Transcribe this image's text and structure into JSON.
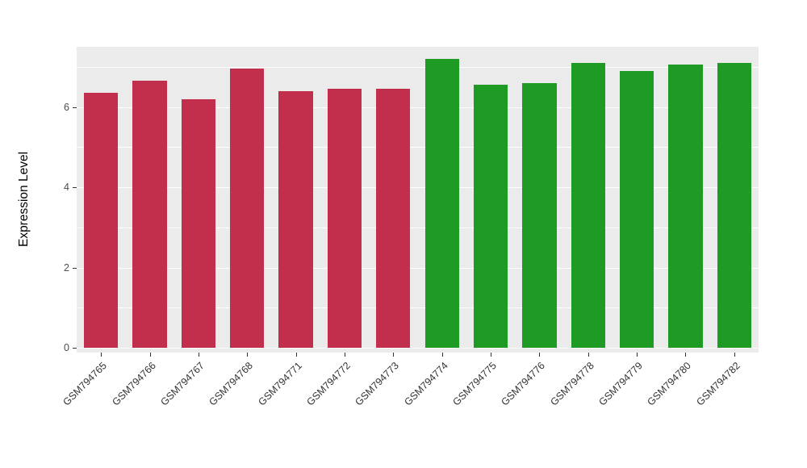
{
  "figure": {
    "background_hex": "#FFFFFF",
    "panel_background_hex": "#EBEBEB",
    "gridline_hex": "#FFFFFF",
    "axis_text_hex": "#4D4D4D"
  },
  "chart_data": {
    "type": "bar",
    "title": "",
    "xlabel": "",
    "ylabel": "Expression Level",
    "ylim": [
      0,
      7.5
    ],
    "yticks": [
      0,
      2,
      4,
      6
    ],
    "minor_gridlines": [
      1,
      3,
      5,
      7
    ],
    "grid": "horizontal white major/minor gridlines on gray panel (ggplot style)",
    "legend": "none",
    "categories": [
      "GSM794765",
      "GSM794766",
      "GSM794767",
      "GSM794768",
      "GSM794771",
      "GSM794772",
      "GSM794773",
      "GSM794774",
      "GSM794775",
      "GSM794776",
      "GSM794778",
      "GSM794779",
      "GSM794780",
      "GSM794782"
    ],
    "values": [
      6.35,
      6.65,
      6.2,
      6.95,
      6.4,
      6.45,
      6.45,
      7.2,
      6.55,
      6.6,
      7.1,
      6.9,
      7.05,
      7.1
    ],
    "bar_groups": [
      "group1",
      "group1",
      "group1",
      "group1",
      "group1",
      "group1",
      "group1",
      "group2",
      "group2",
      "group2",
      "group2",
      "group2",
      "group2",
      "group2"
    ],
    "group_colors": {
      "group1": "#C22F4D",
      "group2": "#1E9B24"
    }
  }
}
